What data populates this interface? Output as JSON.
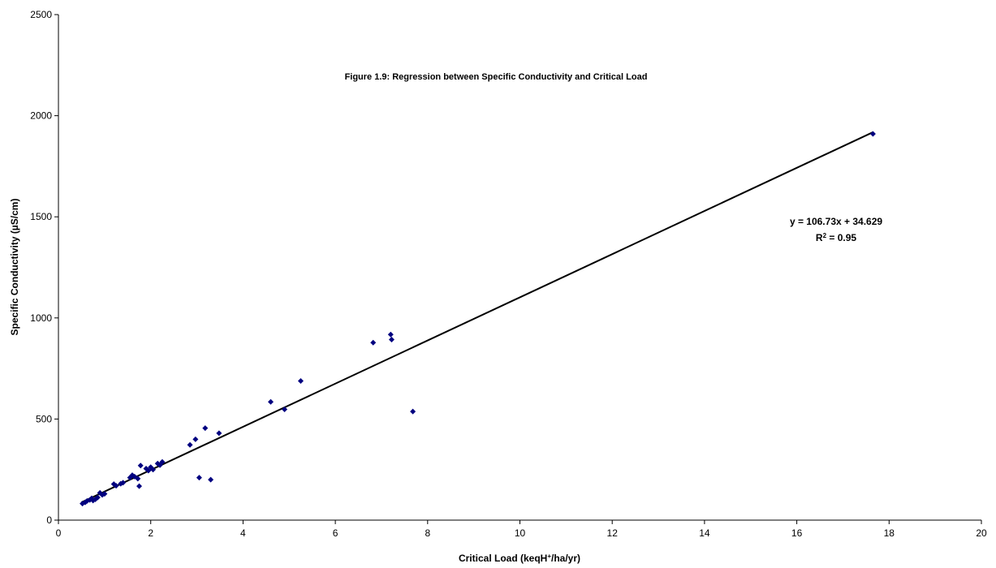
{
  "chart_data": {
    "type": "scatter",
    "title": "Figure 1.9: Regression between Specific Conductivity and Critical Load",
    "xlabel": {
      "main": "Critical Load (keqH",
      "sup": "+",
      "rest": "/ha/yr)"
    },
    "ylabel": "Specific Conductivity (µS/cm)",
    "xlim": [
      0,
      20
    ],
    "ylim": [
      0,
      2500
    ],
    "xticks": [
      "0",
      "2",
      "4",
      "6",
      "8",
      "10",
      "12",
      "14",
      "16",
      "18",
      "20"
    ],
    "yticks": [
      "0",
      "500",
      "1000",
      "1500",
      "2000",
      "2500"
    ],
    "marker_color": "#000080",
    "line_color": "#000000",
    "grid": false,
    "points": [
      [
        0.52,
        82
      ],
      [
        0.58,
        88
      ],
      [
        0.62,
        95
      ],
      [
        0.68,
        100
      ],
      [
        0.72,
        108
      ],
      [
        0.75,
        97
      ],
      [
        0.8,
        103
      ],
      [
        0.85,
        112
      ],
      [
        0.9,
        135
      ],
      [
        0.95,
        125
      ],
      [
        1.0,
        130
      ],
      [
        1.2,
        178
      ],
      [
        1.25,
        170
      ],
      [
        1.35,
        180
      ],
      [
        1.4,
        185
      ],
      [
        1.55,
        210
      ],
      [
        1.6,
        222
      ],
      [
        1.65,
        215
      ],
      [
        1.72,
        205
      ],
      [
        1.75,
        168
      ],
      [
        1.78,
        270
      ],
      [
        1.9,
        255
      ],
      [
        1.95,
        245
      ],
      [
        2.0,
        262
      ],
      [
        2.05,
        250
      ],
      [
        2.15,
        280
      ],
      [
        2.2,
        272
      ],
      [
        2.25,
        288
      ],
      [
        2.85,
        372
      ],
      [
        2.97,
        400
      ],
      [
        3.05,
        210
      ],
      [
        3.18,
        455
      ],
      [
        3.3,
        200
      ],
      [
        3.48,
        430
      ],
      [
        4.6,
        585
      ],
      [
        4.9,
        548
      ],
      [
        5.25,
        688
      ],
      [
        6.82,
        878
      ],
      [
        7.2,
        918
      ],
      [
        7.22,
        893
      ],
      [
        7.68,
        537
      ],
      [
        17.65,
        1910
      ]
    ],
    "regression": {
      "slope": 106.73,
      "intercept": 34.629,
      "x_range": [
        0.5,
        17.65
      ],
      "equation": "y = 106.73x + 34.629",
      "r2_main": "R",
      "r2_sup": "2",
      "r2_rest": " = 0.95"
    }
  }
}
